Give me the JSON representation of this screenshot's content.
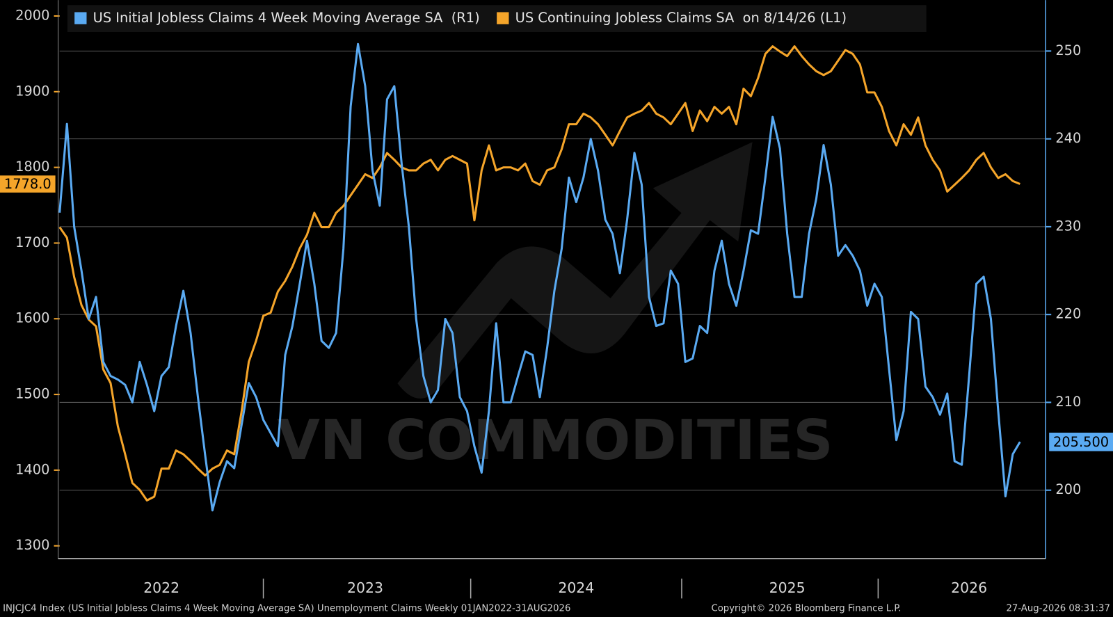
{
  "chart_data": {
    "type": "line",
    "watermark": "VN COMMODITIES",
    "footer_left": "INJCJC4 Index (US Initial Jobless Claims 4 Week Moving Average SA) Unemployment Claims Weekly 01JAN2022-31AUG2026",
    "footer_center": "Copyright© 2026 Bloomberg Finance L.P.",
    "footer_right": "27-Aug-2026 08:31:37",
    "categories": [
      null,
      null,
      null,
      null,
      null,
      null,
      null,
      null,
      null,
      null,
      null,
      null,
      null,
      null,
      "2022",
      null,
      null,
      null,
      null,
      null,
      null,
      null,
      null,
      null,
      null,
      null,
      null,
      null,
      null,
      null,
      null,
      null,
      null,
      null,
      null,
      null,
      null,
      null,
      null,
      null,
      null,
      null,
      "2023",
      null,
      null,
      null,
      null,
      null,
      null,
      null,
      null,
      null,
      null,
      null,
      null,
      null,
      null,
      null,
      null,
      null,
      null,
      null,
      null,
      null,
      null,
      null,
      null,
      null,
      null,
      null,
      null,
      "2024",
      null,
      null,
      null,
      null,
      null,
      null,
      null,
      null,
      null,
      null,
      null,
      null,
      null,
      null,
      null,
      null,
      null,
      null,
      null,
      null,
      null,
      null,
      null,
      null,
      null,
      null,
      null,
      null,
      "2025",
      null,
      null,
      null,
      null,
      null,
      null,
      null,
      null,
      null,
      null,
      null,
      null,
      null,
      null,
      null,
      null,
      null,
      null,
      null,
      null,
      null,
      null,
      null,
      null,
      "2026",
      null,
      null,
      null,
      null,
      null,
      null,
      null
    ],
    "series": [
      {
        "name": "US Initial Jobless Claims 4 Week Moving Average SA  (R1)",
        "color": "#5aaaf2",
        "axis": "y2",
        "values": [
          231.6,
          241.7,
          230,
          225,
          219.5,
          222,
          214.6,
          213,
          212.6,
          212,
          210,
          214.6,
          212,
          209,
          213,
          214,
          218.7,
          222.7,
          217.9,
          210.6,
          204,
          197.7,
          200.9,
          203.3,
          202.5,
          207.4,
          212.2,
          210.6,
          208,
          206.5,
          205,
          215.4,
          218.7,
          223.5,
          228.4,
          223.5,
          217,
          216.2,
          217.9,
          227.5,
          243.7,
          250.8,
          246,
          236.4,
          232.4,
          244.5,
          246,
          237.2,
          230,
          219.5,
          213,
          210,
          211.4,
          219.5,
          217.9,
          210.6,
          209,
          205,
          202,
          209,
          219,
          210,
          210,
          213,
          215.8,
          215.4,
          210.6,
          216.2,
          222.7,
          227.5,
          235.6,
          232.8,
          235.6,
          240,
          236.4,
          230.8,
          229.2,
          224.7,
          230.8,
          238.4,
          234.8,
          222,
          218.7,
          219,
          225,
          223.5,
          214.6,
          215,
          218.7,
          217.9,
          225,
          228.4,
          223.5,
          221,
          225,
          229.6,
          229.2,
          235.6,
          242.5,
          238.9,
          229.2,
          222,
          222,
          229.2,
          233.2,
          239.3,
          234.8,
          226.7,
          227.9,
          226.7,
          225,
          221,
          223.5,
          222,
          213.8,
          205.7,
          209,
          220.3,
          219.5,
          211.8,
          210.6,
          208.6,
          211,
          203.3,
          202.9,
          213,
          223.5,
          224.3,
          219.5,
          209,
          199.3,
          204.1,
          205.5
        ]
      },
      {
        "name": "US Continuing Jobless Claims SA  on 8/14/26 (L1)",
        "color": "#f5a52a",
        "axis": "y",
        "values": [
          1721,
          1707,
          1655,
          1618,
          1599,
          1590,
          1533,
          1515,
          1458,
          1421,
          1383,
          1374,
          1360,
          1365,
          1402,
          1402,
          1426,
          1421,
          1412,
          1402,
          1393,
          1402,
          1407,
          1426,
          1421,
          1477,
          1543,
          1571,
          1604,
          1608,
          1636,
          1650,
          1669,
          1693,
          1711,
          1740,
          1721,
          1721,
          1740,
          1749,
          1763,
          1777,
          1791,
          1786,
          1800,
          1819,
          1810,
          1800,
          1796,
          1796,
          1805,
          1810,
          1796,
          1810,
          1815,
          1810,
          1805,
          1730,
          1796,
          1829,
          1796,
          1800,
          1800,
          1796,
          1805,
          1782,
          1777,
          1796,
          1800,
          1824,
          1857,
          1857,
          1871,
          1866,
          1857,
          1843,
          1829,
          1848,
          1866,
          1871,
          1875,
          1885,
          1871,
          1866,
          1857,
          1871,
          1885,
          1848,
          1875,
          1861,
          1880,
          1871,
          1880,
          1857,
          1904,
          1894,
          1918,
          1950,
          1960,
          1953,
          1947,
          1960,
          1947,
          1936,
          1927,
          1922,
          1927,
          1941,
          1955,
          1950,
          1936,
          1899,
          1899,
          1880,
          1848,
          1829,
          1857,
          1843,
          1866,
          1829,
          1810,
          1796,
          1768,
          1777,
          1786,
          1796,
          1810,
          1819,
          1800,
          1786,
          1791,
          1782,
          1778
        ]
      }
    ],
    "ylim": [
      1283,
      2021
    ],
    "yticks": [
      1300,
      1400,
      1500,
      1600,
      1700,
      1800,
      1900,
      2000
    ],
    "y2lim": [
      192.2,
      255.8
    ],
    "y2ticks": [
      200,
      210,
      220,
      230,
      240,
      250
    ],
    "grid": true,
    "annotations": [
      {
        "axis": "y",
        "value": 1778,
        "label": "1778.0"
      },
      {
        "axis": "y2",
        "value": 205.5,
        "label": "205.500"
      }
    ]
  }
}
